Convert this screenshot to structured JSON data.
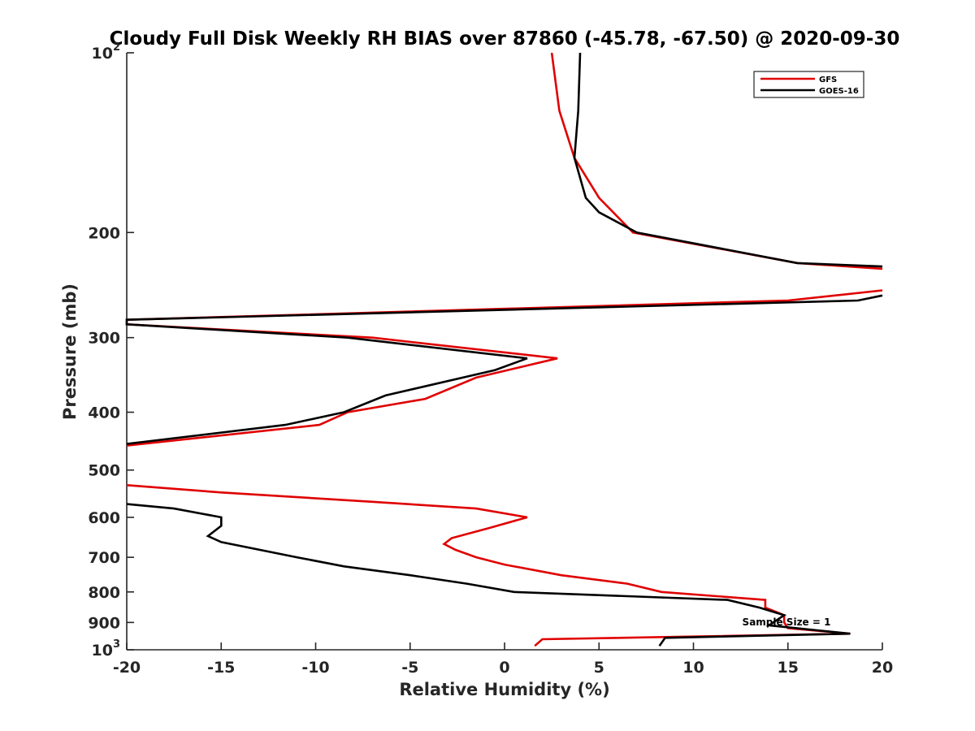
{
  "chart_data": {
    "type": "line",
    "title": "Cloudy Full Disk Weekly RH BIAS over 87860 (-45.78, -67.50) @ 2020-09-30",
    "xlabel": "Relative Humidity (%)",
    "ylabel": "Pressure (mb)",
    "xlim": [
      -20,
      20
    ],
    "ylim": [
      100,
      1000
    ],
    "y_scale": "log",
    "y_reversed": true,
    "grid": false,
    "legend_position": "top-right",
    "x_ticks": [
      -20,
      -15,
      -10,
      -5,
      0,
      5,
      10,
      15,
      20
    ],
    "y_ticks": [
      {
        "value": 100,
        "base": "10",
        "exp": "2"
      },
      {
        "value": 200,
        "label": "200"
      },
      {
        "value": 300,
        "label": "300"
      },
      {
        "value": 400,
        "label": "400"
      },
      {
        "value": 500,
        "label": "500"
      },
      {
        "value": 600,
        "label": "600"
      },
      {
        "value": 700,
        "label": "700"
      },
      {
        "value": 800,
        "label": "800"
      },
      {
        "value": 900,
        "label": "900"
      },
      {
        "value": 1000,
        "base": "10",
        "exp": "3"
      }
    ],
    "series": [
      {
        "name": "GFS",
        "color": "#e00000",
        "points": [
          [
            2.5,
            100
          ],
          [
            2.9,
            125
          ],
          [
            3.7,
            150
          ],
          [
            5.0,
            175
          ],
          [
            6.8,
            200
          ],
          [
            15.5,
            225
          ],
          [
            20.0,
            230
          ],
          [
            null,
            null
          ],
          [
            20.0,
            250
          ],
          [
            15.0,
            260
          ],
          [
            -20.0,
            280
          ],
          [
            -20.0,
            285
          ],
          [
            -7.0,
            300
          ],
          [
            2.8,
            325
          ],
          [
            -1.5,
            350
          ],
          [
            -4.2,
            380
          ],
          [
            -8.3,
            400
          ],
          [
            -9.8,
            420
          ],
          [
            -20.0,
            455
          ],
          [
            null,
            null
          ],
          [
            -20.0,
            530
          ],
          [
            -15.0,
            545
          ],
          [
            -7.0,
            565
          ],
          [
            -1.5,
            580
          ],
          [
            1.2,
            600
          ],
          [
            -0.8,
            625
          ],
          [
            -2.8,
            650
          ],
          [
            -3.2,
            665
          ],
          [
            -2.6,
            680
          ],
          [
            -1.5,
            700
          ],
          [
            0.0,
            720
          ],
          [
            3.0,
            750
          ],
          [
            6.5,
            775
          ],
          [
            8.3,
            800
          ],
          [
            13.8,
            825
          ],
          [
            13.8,
            850
          ],
          [
            14.8,
            875
          ],
          [
            14.8,
            900
          ],
          [
            15.0,
            920
          ],
          [
            18.3,
            940
          ],
          [
            2.0,
            960
          ],
          [
            1.6,
            985
          ]
        ]
      },
      {
        "name": "GOES-16",
        "color": "#000000",
        "points": [
          [
            4.0,
            100
          ],
          [
            3.9,
            125
          ],
          [
            3.7,
            150
          ],
          [
            4.3,
            175
          ],
          [
            5.0,
            185
          ],
          [
            7.0,
            200
          ],
          [
            15.5,
            225
          ],
          [
            20.0,
            228
          ],
          [
            null,
            null
          ],
          [
            20.0,
            255
          ],
          [
            18.7,
            260
          ],
          [
            -20.0,
            280
          ],
          [
            -20.0,
            285
          ],
          [
            -8.3,
            300
          ],
          [
            1.2,
            325
          ],
          [
            -0.5,
            340
          ],
          [
            -6.3,
            375
          ],
          [
            -8.5,
            400
          ],
          [
            -11.6,
            420
          ],
          [
            -20.0,
            452
          ],
          [
            null,
            null
          ],
          [
            -20.0,
            570
          ],
          [
            -17.5,
            580
          ],
          [
            -15.0,
            600
          ],
          [
            -15.0,
            620
          ],
          [
            -15.7,
            645
          ],
          [
            -15.0,
            660
          ],
          [
            -11.0,
            700
          ],
          [
            -8.5,
            725
          ],
          [
            -5.0,
            750
          ],
          [
            -2.0,
            775
          ],
          [
            0.5,
            800
          ],
          [
            11.8,
            825
          ],
          [
            13.5,
            850
          ],
          [
            14.8,
            875
          ],
          [
            14.0,
            910
          ],
          [
            18.3,
            940
          ],
          [
            8.5,
            955
          ],
          [
            8.2,
            985
          ]
        ]
      }
    ],
    "annotations": [
      {
        "text": "Sample Size = 1",
        "x": 14.5,
        "y": 905
      }
    ]
  }
}
